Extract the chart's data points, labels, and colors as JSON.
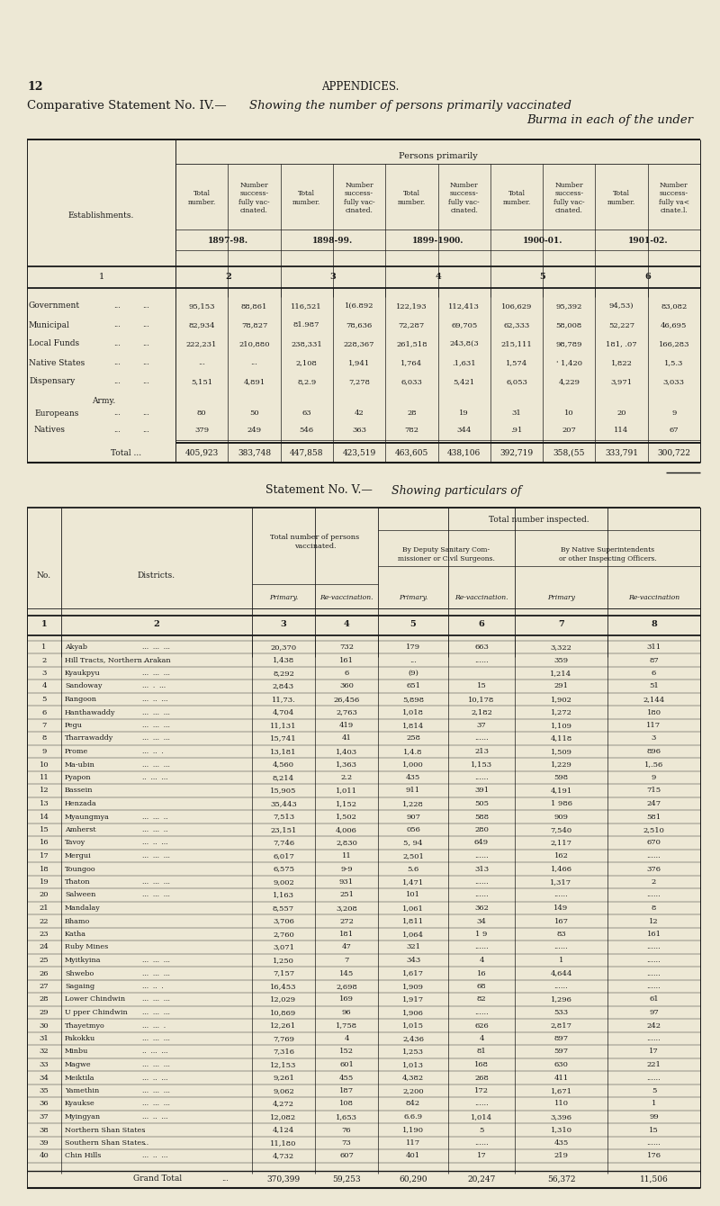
{
  "bg_color": "#ede8d5",
  "text_color": "#1a1a1a",
  "page_num": "12",
  "page_header": "APPENDICES.",
  "title_prefix": "Comparative Statement No. IV.—",
  "title_italic": "Showing the number of persons primarily vaccinated",
  "title_line2": "Burma in each of the under",
  "persons_primarily_label": "Persons primarily",
  "establishments_label": "Establishments.",
  "col_header_pairs": [
    [
      "Total\nnumber.",
      "Number\nsuccess-\nfully vac-\ncinated."
    ],
    [
      "Total\nnumber.",
      "Number\nsuccess-\nfully vac-\ncinated."
    ],
    [
      "Total\nnumber.",
      "Number\nsuccess-\nfully vac-\ncinated."
    ],
    [
      "Total\nnumber.",
      "Number\nsuccess-\nfully vac-\ncinated."
    ],
    [
      "Total\nnumber.",
      "Number\nsuccess-\nfully va<\ncinate.l."
    ]
  ],
  "year_headers": [
    "1897-98.",
    "1898-99.",
    "1899-1900.",
    "1900-01.",
    "1901-02."
  ],
  "col_num_row1": "1",
  "col_num_row2": [
    "2",
    "3",
    "4",
    "5",
    "6"
  ],
  "table1_rows": [
    [
      "Government",
      "...",
      "...",
      "95,153",
      "88,861",
      "116,521",
      "1(6.892",
      "122,193",
      "112,413",
      "106,629",
      "95,392",
      "94,53)",
      "83,082"
    ],
    [
      "Municipal",
      "...",
      "...",
      "82,934",
      "78,827",
      "81.987",
      "78,636",
      "72,287",
      "69,705",
      "62,333",
      "58,008",
      "52,227",
      "46,695"
    ],
    [
      "Local Funds",
      "...",
      "...",
      "222,231",
      "210,880",
      "238,331",
      "228,367",
      "261,518",
      "243,8(3",
      "215,111",
      "98,789",
      "181, .07",
      "166,283"
    ],
    [
      "Native States",
      "...",
      "...",
      "...",
      "...",
      "2,108",
      "1,941",
      "1,764",
      ".1,631",
      "1,574",
      "' 1,420",
      "1,822",
      "1,5.3"
    ],
    [
      "Dispensary",
      "...",
      "...",
      "5,151",
      "4,891",
      "8,2.9",
      "7,278",
      "6,033",
      "5,421",
      "6,053",
      "4,229",
      "3,971",
      "3,033"
    ]
  ],
  "army_label": "Army.",
  "army_rows": [
    [
      "Europeans",
      "...",
      "...",
      "80",
      "50",
      "63",
      "42",
      "28",
      "19",
      "31",
      "10",
      "20",
      "9"
    ],
    [
      "Natives",
      "...",
      "...",
      "379",
      "249",
      "546",
      "363",
      "782",
      "344",
      ".91",
      "207",
      "114",
      "67"
    ]
  ],
  "total_row_label": "Total ...",
  "total_row_vals": [
    "405,923",
    "383,748",
    "447,858",
    "423,519",
    "463,605",
    "438,106",
    "392,719",
    "358,(55",
    "333,791",
    "300,722"
  ],
  "title_v_prefix": "Statement No. V.—",
  "title_v_italic": "Showing particulars of",
  "total_number_inspected": "Total number inspected.",
  "total_vaccinated_label": "Total number of persons\nvaccinated.",
  "by_deputy_label": "By Deputy Sanitary Com-\nmissioner or Civil Surgeons.",
  "by_native_label": "By Native Superintendents\nor other Inspecting Officers.",
  "col_headers_v": [
    "Primary.",
    "Re-vaccination.",
    "Primary.",
    "Re-vaccination.",
    "Primary",
    "Re-vaccination"
  ],
  "col_nums_v": [
    "1",
    "2",
    "3",
    "4",
    "5",
    "6",
    "7",
    "8"
  ],
  "no_label": "No.",
  "districts_label": "Districts.",
  "table2_rows": [
    [
      "1",
      "Akyab",
      "...",
      "...",
      "...",
      "20,370",
      "732",
      "179",
      "663",
      "3,322",
      "311"
    ],
    [
      "2",
      "Hill Tracts, Northern Arakan",
      "..",
      "",
      "",
      "1,438",
      "161",
      "...",
      "......",
      "359",
      "87"
    ],
    [
      "3",
      "Kyaukpyu",
      "...",
      "...",
      "...",
      "8,292",
      "6",
      "(9)",
      "",
      "1,214",
      "6"
    ],
    [
      "4",
      "Sandoway",
      "...",
      ".",
      "...",
      "2,843",
      "360",
      "651",
      "15",
      "291",
      "51"
    ],
    [
      "5",
      "Rangoon",
      "...",
      "..",
      "...",
      "11,73.",
      "26,456",
      "5,898",
      "10,178",
      "1,902",
      "2,144"
    ],
    [
      "6",
      "Hanthawaddy",
      "...",
      "...",
      "...",
      "4,704",
      "2,763",
      "1,018",
      "2,182",
      "1,272",
      "180"
    ],
    [
      "7",
      "Pegu",
      "...",
      "...",
      "...",
      "11,131",
      "419",
      "1,814",
      "37",
      "1,109",
      "117"
    ],
    [
      "8",
      "Tharrawaddy",
      "...",
      "...",
      "...",
      "15,741",
      "41",
      "258",
      "......",
      "4,118",
      "3"
    ],
    [
      "9",
      "Prome",
      "...",
      "..",
      ".",
      "13,181",
      "1,403",
      "1,4.8",
      "213",
      "1,509",
      "896"
    ],
    [
      "10",
      "Ma-ubin",
      "...",
      "...",
      "...",
      "4,560",
      "1,363",
      "1,000",
      "1,153",
      "1,229",
      "1,.56"
    ],
    [
      "11",
      "Pyapon",
      "..",
      "...",
      "...",
      "8,214",
      "2.2",
      "435",
      "......",
      "598",
      "9"
    ],
    [
      "12",
      "Bassein",
      "",
      "",
      "",
      "15,905",
      "1,011",
      "911",
      "391",
      "4,191",
      "715"
    ],
    [
      "13",
      "Henzada",
      "",
      "",
      "",
      "35,443",
      "1,152",
      "1,228",
      "505",
      "1 986",
      "247"
    ],
    [
      "14",
      "Myaungmya",
      "...",
      "...",
      "..",
      "7,513",
      "1,502",
      "907",
      "588",
      "909",
      "581"
    ],
    [
      "15",
      "Amherst",
      "...",
      "...",
      "..",
      "23,151",
      "4,006",
      "056",
      "280",
      "7,540",
      "2,510"
    ],
    [
      "16",
      "Tavoy",
      "...",
      "..",
      "...",
      "7,746",
      "2,830",
      "5, 94",
      "649",
      "2,117",
      "670"
    ],
    [
      "17",
      "Mergui",
      "...",
      "...",
      "...",
      "6,017",
      "11",
      "2,501",
      "......",
      "162",
      "......"
    ],
    [
      "18",
      "Toungoo",
      "",
      "",
      "",
      "6,575",
      "9-9",
      "5.6",
      "313",
      "1,466",
      "376"
    ],
    [
      "19",
      "Thaton",
      "...",
      "...",
      "...",
      "9,002",
      "931",
      "1,471",
      "......",
      "1,317",
      "2"
    ],
    [
      "20",
      "Salween",
      "...",
      "...",
      "...",
      "1,163",
      "251",
      "101",
      "......",
      "......",
      "......"
    ],
    [
      "21",
      "Mandalay",
      "",
      "",
      "",
      "8,557",
      "3,208",
      "1,061",
      "362",
      "149",
      "8"
    ],
    [
      "22",
      "Bhamo",
      "",
      "",
      "",
      "3,706",
      "272",
      "1,811",
      "34",
      "167",
      "12"
    ],
    [
      "23",
      "Katha",
      "",
      "",
      "",
      "2,760",
      "181",
      "1,064",
      "1 9",
      "83",
      "161"
    ],
    [
      "24",
      "Ruby Mines",
      "",
      "",
      "",
      "3,071",
      "47",
      "321",
      "......",
      "......",
      "......"
    ],
    [
      "25",
      "Myitkyina",
      "...",
      "...",
      "...",
      "1,250",
      "7",
      "343",
      "4",
      "1",
      "......"
    ],
    [
      "26",
      "Shwebo",
      "...",
      "...",
      "...",
      "7,157",
      "145",
      "1,617",
      "16",
      "4,644",
      "......"
    ],
    [
      "27",
      "Sagaing",
      "...",
      "..",
      ".",
      "16,453",
      "2,698",
      "1,909",
      "68",
      "......",
      "......"
    ],
    [
      "28",
      "Lower Chindwin",
      "...",
      "...",
      "...",
      "12,029",
      "169",
      "1,917",
      "82",
      "1,296",
      "61"
    ],
    [
      "29",
      "U pper Chindwin",
      "...",
      "...",
      "...",
      "10,869",
      "96",
      "1,906",
      "......",
      "533",
      "97"
    ],
    [
      "30",
      "Thayetmyo",
      "...",
      "...",
      ".",
      "12,261",
      "1,758",
      "1,015",
      "626",
      "2,817",
      "242"
    ],
    [
      "31",
      "Pakokku",
      "...",
      "...",
      "...",
      "7,769",
      "4",
      "2,436",
      "4",
      "897",
      "......"
    ],
    [
      "32",
      "Minbu",
      "..",
      "...",
      "...",
      "7,316",
      "152",
      "1,253",
      "81",
      "597",
      "17"
    ],
    [
      "33",
      "Magwe",
      "...",
      "...",
      "...",
      "12,153",
      "601",
      "1,013",
      "168",
      "630",
      "221"
    ],
    [
      "34",
      "Meiktila",
      "...",
      "..",
      "...",
      "9,261",
      "455",
      "4,382",
      "268",
      "411",
      "......"
    ],
    [
      "35",
      "Yamethin",
      "...",
      "...",
      "...",
      "9,062",
      "187",
      "2,200",
      "172",
      "1,671",
      "5"
    ],
    [
      "36",
      "Kyaukse",
      "...",
      "...",
      "...",
      "4,272",
      "108",
      "842",
      "......",
      "110",
      "1"
    ],
    [
      "37",
      "Myingyan",
      "...",
      "..",
      "...",
      "12,082",
      "1,653",
      "6.6.9",
      "1,014",
      "3,396",
      "99"
    ],
    [
      "38",
      "Northern Shan States",
      ".",
      "",
      "",
      "4,124",
      "76",
      "1,190",
      "5",
      "1,310",
      "15"
    ],
    [
      "39",
      "Southern Shan States",
      "",
      "...",
      "",
      "11,180",
      "73",
      "117",
      "......",
      "435",
      "......"
    ],
    [
      "40",
      "Chin Hills",
      "...",
      "..",
      "...",
      "4,732",
      "607",
      "401",
      "17",
      "219",
      "176"
    ]
  ],
  "grand_total_row": [
    "Grand Total",
    "...",
    "370,399",
    "59,253",
    "60,290",
    "20,247",
    "56,372",
    "11,506"
  ]
}
